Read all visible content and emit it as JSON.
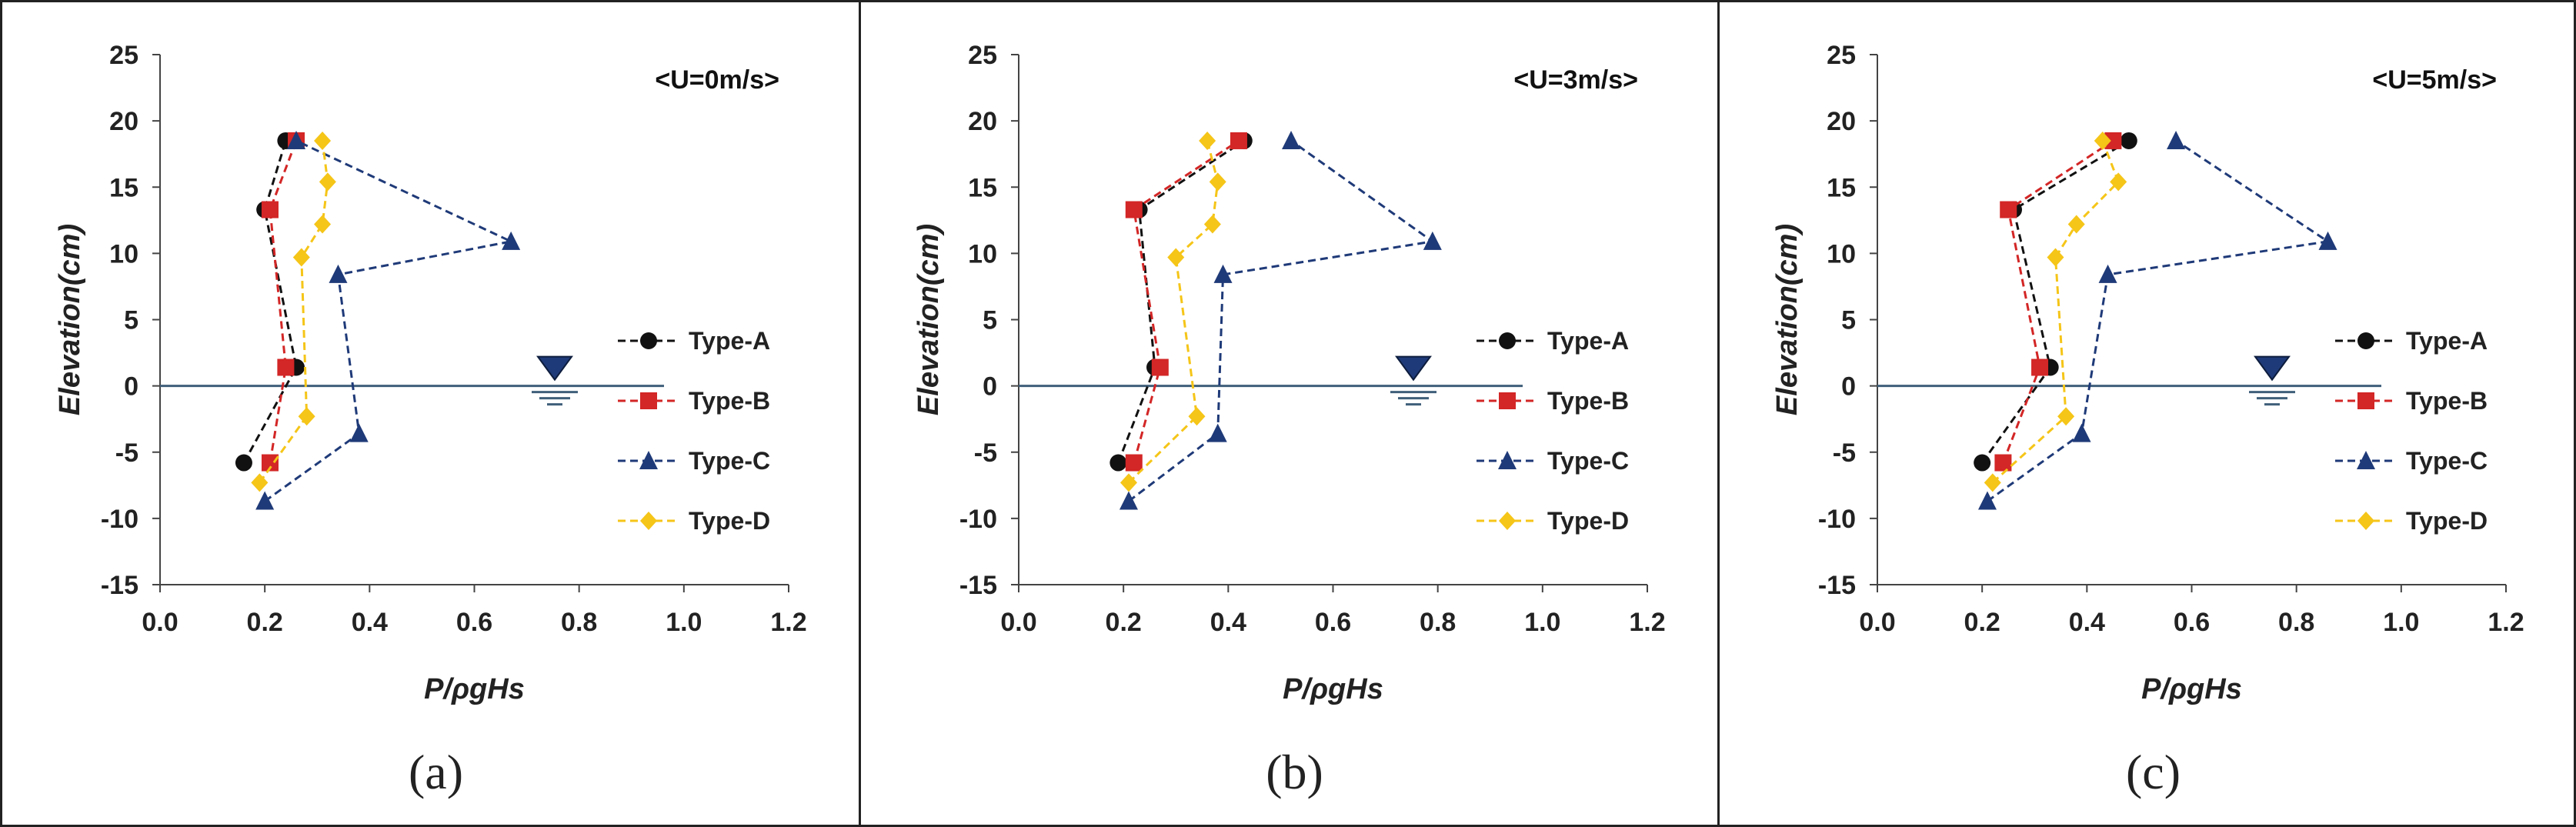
{
  "colors": {
    "Type-A": "#111111",
    "Type-B": "#d32626",
    "Type-C": "#1f3a78",
    "Type-D": "#f5c518",
    "waterline": "#3f5f7a"
  },
  "icons": {
    "water_level": "inverted-triangle-water-level-icon"
  },
  "chart_data": [
    {
      "type": "line",
      "annotation": "<U=0m/s>",
      "caption": "(a)",
      "xlabel": "P/ρgHs",
      "ylabel": "Elevation(cm)",
      "xlim": [
        0,
        1.2
      ],
      "ylim": [
        -15,
        25
      ],
      "xticks": [
        "0.0",
        "0.2",
        "0.4",
        "0.6",
        "0.8",
        "1.0",
        "1.2"
      ],
      "yticks": [
        "25",
        "20",
        "15",
        "10",
        "5",
        "0",
        "-5",
        "-10",
        "-15"
      ],
      "water_level": 0,
      "series": [
        {
          "name": "Type-A",
          "marker": "circle",
          "points": [
            [
              0.16,
              -5.8
            ],
            [
              0.26,
              1.4
            ],
            [
              0.2,
              13.3
            ],
            [
              0.24,
              18.5
            ]
          ]
        },
        {
          "name": "Type-B",
          "marker": "square",
          "points": [
            [
              0.21,
              -5.8
            ],
            [
              0.24,
              1.4
            ],
            [
              0.21,
              13.3
            ],
            [
              0.26,
              18.5
            ]
          ]
        },
        {
          "name": "Type-C",
          "marker": "triangle",
          "points": [
            [
              0.2,
              -8.7
            ],
            [
              0.38,
              -3.6
            ],
            [
              0.34,
              8.4
            ],
            [
              0.67,
              10.9
            ],
            [
              0.26,
              18.5
            ]
          ]
        },
        {
          "name": "Type-D",
          "marker": "diamond",
          "points": [
            [
              0.19,
              -7.3
            ],
            [
              0.28,
              -2.3
            ],
            [
              0.27,
              9.7
            ],
            [
              0.31,
              12.2
            ],
            [
              0.32,
              15.4
            ],
            [
              0.31,
              18.5
            ]
          ]
        }
      ]
    },
    {
      "type": "line",
      "annotation": "<U=3m/s>",
      "caption": "(b)",
      "xlabel": "P/ρgHs",
      "ylabel": "Elevation(cm)",
      "xlim": [
        0,
        1.2
      ],
      "ylim": [
        -15,
        25
      ],
      "xticks": [
        "0.0",
        "0.2",
        "0.4",
        "0.6",
        "0.8",
        "1.0",
        "1.2"
      ],
      "yticks": [
        "25",
        "20",
        "15",
        "10",
        "5",
        "0",
        "-5",
        "-10",
        "-15"
      ],
      "water_level": 0,
      "series": [
        {
          "name": "Type-A",
          "marker": "circle",
          "points": [
            [
              0.19,
              -5.8
            ],
            [
              0.26,
              1.4
            ],
            [
              0.23,
              13.3
            ],
            [
              0.43,
              18.5
            ]
          ]
        },
        {
          "name": "Type-B",
          "marker": "square",
          "points": [
            [
              0.22,
              -5.8
            ],
            [
              0.27,
              1.4
            ],
            [
              0.22,
              13.3
            ],
            [
              0.42,
              18.5
            ]
          ]
        },
        {
          "name": "Type-C",
          "marker": "triangle",
          "points": [
            [
              0.21,
              -8.7
            ],
            [
              0.38,
              -3.6
            ],
            [
              0.39,
              8.4
            ],
            [
              0.79,
              10.9
            ],
            [
              0.52,
              18.5
            ]
          ]
        },
        {
          "name": "Type-D",
          "marker": "diamond",
          "points": [
            [
              0.21,
              -7.3
            ],
            [
              0.34,
              -2.3
            ],
            [
              0.3,
              9.7
            ],
            [
              0.37,
              12.2
            ],
            [
              0.38,
              15.4
            ],
            [
              0.36,
              18.5
            ]
          ]
        }
      ]
    },
    {
      "type": "line",
      "annotation": "<U=5m/s>",
      "caption": "(c)",
      "xlabel": "P/ρgHs",
      "ylabel": "Elevation(cm)",
      "xlim": [
        0,
        1.2
      ],
      "ylim": [
        -15,
        25
      ],
      "xticks": [
        "0.0",
        "0.2",
        "0.4",
        "0.6",
        "0.8",
        "1.0",
        "1.2"
      ],
      "yticks": [
        "25",
        "20",
        "15",
        "10",
        "5",
        "0",
        "-5",
        "-10",
        "-15"
      ],
      "water_level": 0,
      "series": [
        {
          "name": "Type-A",
          "marker": "circle",
          "points": [
            [
              0.2,
              -5.8
            ],
            [
              0.33,
              1.4
            ],
            [
              0.26,
              13.3
            ],
            [
              0.48,
              18.5
            ]
          ]
        },
        {
          "name": "Type-B",
          "marker": "square",
          "points": [
            [
              0.24,
              -5.8
            ],
            [
              0.31,
              1.4
            ],
            [
              0.25,
              13.3
            ],
            [
              0.45,
              18.5
            ]
          ]
        },
        {
          "name": "Type-C",
          "marker": "triangle",
          "points": [
            [
              0.21,
              -8.7
            ],
            [
              0.39,
              -3.6
            ],
            [
              0.44,
              8.4
            ],
            [
              0.86,
              10.9
            ],
            [
              0.57,
              18.5
            ]
          ]
        },
        {
          "name": "Type-D",
          "marker": "diamond",
          "points": [
            [
              0.22,
              -7.3
            ],
            [
              0.36,
              -2.3
            ],
            [
              0.34,
              9.7
            ],
            [
              0.38,
              12.2
            ],
            [
              0.46,
              15.4
            ],
            [
              0.43,
              18.5
            ]
          ]
        }
      ]
    }
  ]
}
